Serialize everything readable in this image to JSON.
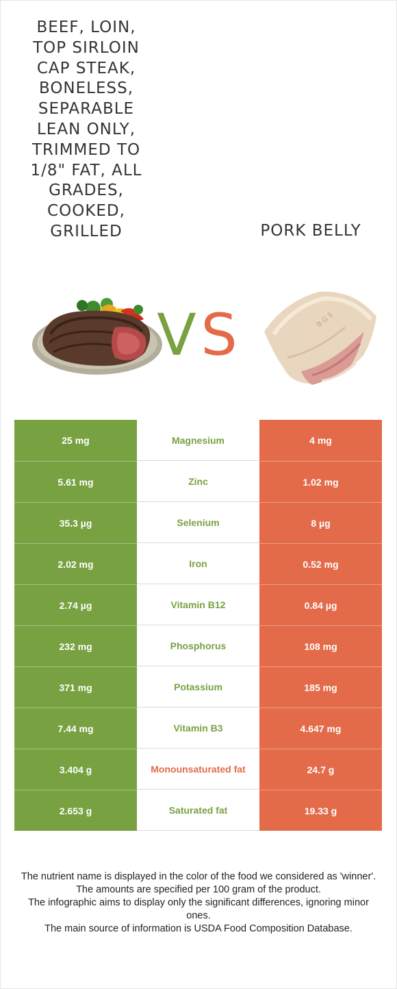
{
  "colors": {
    "left_food": "#78a142",
    "right_food": "#e36b4a",
    "nutrient_winner_left": "#78a142",
    "nutrient_winner_right": "#e36b4a"
  },
  "foods": {
    "left": {
      "title": "BEEF, LOIN, TOP SIRLOIN CAP STEAK, BONELESS, SEPARABLE LEAN ONLY, TRIMMED TO 1/8\" FAT, ALL GRADES, COOKED, GRILLED",
      "image": "steak-plate-image"
    },
    "right": {
      "title": "PORK BELLY",
      "image": "pork-belly-image"
    }
  },
  "vs": {
    "v": "V",
    "s": "S"
  },
  "rows": [
    {
      "left": "25 mg",
      "nutrient": "Magnesium",
      "right": "4 mg",
      "winner": "left"
    },
    {
      "left": "5.61 mg",
      "nutrient": "Zinc",
      "right": "1.02 mg",
      "winner": "left"
    },
    {
      "left": "35.3 µg",
      "nutrient": "Selenium",
      "right": "8 µg",
      "winner": "left"
    },
    {
      "left": "2.02 mg",
      "nutrient": "Iron",
      "right": "0.52 mg",
      "winner": "left"
    },
    {
      "left": "2.74 µg",
      "nutrient": "Vitamin B12",
      "right": "0.84 µg",
      "winner": "left"
    },
    {
      "left": "232 mg",
      "nutrient": "Phosphorus",
      "right": "108 mg",
      "winner": "left"
    },
    {
      "left": "371 mg",
      "nutrient": "Potassium",
      "right": "185 mg",
      "winner": "left"
    },
    {
      "left": "7.44 mg",
      "nutrient": "Vitamin B3",
      "right": "4.647 mg",
      "winner": "left"
    },
    {
      "left": "3.404 g",
      "nutrient": "Monounsaturated fat",
      "right": "24.7 g",
      "winner": "right"
    },
    {
      "left": "2.653 g",
      "nutrient": "Saturated fat",
      "right": "19.33 g",
      "winner": "left"
    }
  ],
  "footer": {
    "line1": "The nutrient name is displayed in the color of the food we considered as 'winner'.",
    "line2": "The amounts are specified per 100 gram of the product.",
    "line3": "The infographic aims to display only the significant differences, ignoring minor ones.",
    "line4": "The main source of information is USDA Food Composition Database."
  }
}
